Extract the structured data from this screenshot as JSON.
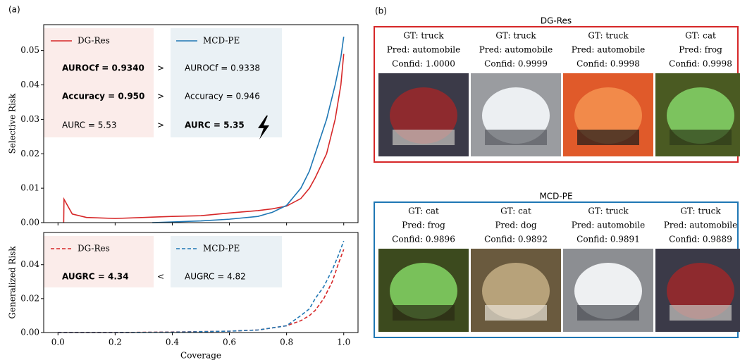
{
  "panel_labels": [
    "(a)",
    "(b)"
  ],
  "chart_data": [
    {
      "type": "line",
      "ylabel": "Selective Risk",
      "dashed": false,
      "xlim": [
        -0.05,
        1.05
      ],
      "ylim": [
        0,
        0.0575
      ],
      "xticks": [
        0,
        0.2,
        0.4,
        0.6,
        0.8,
        1
      ],
      "yticks": [
        {
          "value": 0,
          "label": "0.00"
        },
        {
          "value": 0.01,
          "label": "0.01"
        },
        {
          "value": 0.02,
          "label": "0.02"
        },
        {
          "value": 0.03,
          "label": "0.03"
        },
        {
          "value": 0.04,
          "label": "0.04"
        },
        {
          "value": 0.05,
          "label": "0.05"
        }
      ],
      "x": [
        0.02,
        0.021,
        0.05,
        0.1,
        0.2,
        0.3,
        0.33,
        0.4,
        0.5,
        0.6,
        0.7,
        0.75,
        0.8,
        0.85,
        0.88,
        0.9,
        0.94,
        0.97,
        0.99,
        1.0
      ],
      "series": [
        {
          "name": "DG-Res",
          "color": "#d62728",
          "values": [
            0,
            0.0068,
            0.0025,
            0.0015,
            0.0012,
            0.0015,
            0.0016,
            0.0018,
            0.002,
            0.0028,
            0.0035,
            0.004,
            0.0048,
            0.007,
            0.01,
            0.013,
            0.02,
            0.03,
            0.04,
            0.049
          ]
        },
        {
          "name": "MCD-PE",
          "color": "#1f77b4",
          "values": [
            null,
            null,
            null,
            null,
            null,
            null,
            0,
            0.0002,
            0.0005,
            0.001,
            0.0018,
            0.003,
            0.005,
            0.01,
            0.015,
            0.02,
            0.03,
            0.04,
            0.048,
            0.054
          ]
        }
      ],
      "comparison": {
        "left": [
          {
            "text": "AUROCf = 0.9340",
            "bold": true
          },
          {
            "text": "Accuracy = 0.950",
            "bold": true
          },
          {
            "text": "AURC = 5.53",
            "bold": false
          }
        ],
        "ops": [
          ">",
          ">",
          ">"
        ],
        "right": [
          {
            "text": "AUROCf = 0.9338",
            "bold": false
          },
          {
            "text": "Accuracy = 0.946",
            "bold": false
          },
          {
            "text": "AURC = 5.35",
            "bold": true
          }
        ]
      }
    },
    {
      "type": "line",
      "ylabel": "Generalized Risk",
      "xlabel": "Coverage",
      "dashed": true,
      "xlim": [
        -0.05,
        1.05
      ],
      "ylim": [
        0,
        0.059
      ],
      "xticks": [
        {
          "value": 0,
          "label": "0.0"
        },
        {
          "value": 0.2,
          "label": "0.2"
        },
        {
          "value": 0.4,
          "label": "0.4"
        },
        {
          "value": 0.6,
          "label": "0.6"
        },
        {
          "value": 0.8,
          "label": "0.8"
        },
        {
          "value": 1,
          "label": "1.0"
        }
      ],
      "yticks": [
        {
          "value": 0,
          "label": "0.00"
        },
        {
          "value": 0.02,
          "label": "0.02"
        },
        {
          "value": 0.04,
          "label": "0.04"
        }
      ],
      "x": [
        0,
        0.2,
        0.4,
        0.6,
        0.7,
        0.8,
        0.85,
        0.88,
        0.9,
        0.93,
        0.96,
        0.98,
        1.0
      ],
      "series": [
        {
          "name": "DG-Res",
          "color": "#d62728",
          "values": [
            0,
            0,
            0.0003,
            0.0008,
            0.0015,
            0.004,
            0.007,
            0.01,
            0.013,
            0.02,
            0.03,
            0.04,
            0.049
          ]
        },
        {
          "name": "MCD-PE",
          "color": "#1f77b4",
          "values": [
            0,
            0,
            0.0002,
            0.0008,
            0.0015,
            0.004,
            0.01,
            0.014,
            0.02,
            0.027,
            0.037,
            0.045,
            0.054
          ]
        }
      ],
      "comparison": {
        "left": [
          {
            "text": "AUGRC = 4.34",
            "bold": true
          }
        ],
        "ops": [
          "<"
        ],
        "right": [
          {
            "text": "AUGRC = 4.82",
            "bold": false
          }
        ]
      }
    }
  ],
  "examples": [
    {
      "title": "DG-Res",
      "color": "#d62728",
      "items": [
        {
          "gt": "GT: truck",
          "pred": "Pred: automobile",
          "confid": "Confid: 1.0000"
        },
        {
          "gt": "GT: truck",
          "pred": "Pred: automobile",
          "confid": "Confid: 0.9999"
        },
        {
          "gt": "GT: truck",
          "pred": "Pred: automobile",
          "confid": "Confid: 0.9998"
        },
        {
          "gt": "GT: cat",
          "pred": "Pred: frog",
          "confid": "Confid: 0.9998"
        }
      ]
    },
    {
      "title": "MCD-PE",
      "color": "#1f77b4",
      "items": [
        {
          "gt": "GT: cat",
          "pred": "Pred: frog",
          "confid": "Confid: 0.9896"
        },
        {
          "gt": "GT: cat",
          "pred": "Pred: dog",
          "confid": "Confid: 0.9892"
        },
        {
          "gt": "GT: truck",
          "pred": "Pred: automobile",
          "confid": "Confid: 0.9891"
        },
        {
          "gt": "GT: truck",
          "pred": "Pred: automobile",
          "confid": "Confid: 0.9889"
        }
      ]
    }
  ]
}
